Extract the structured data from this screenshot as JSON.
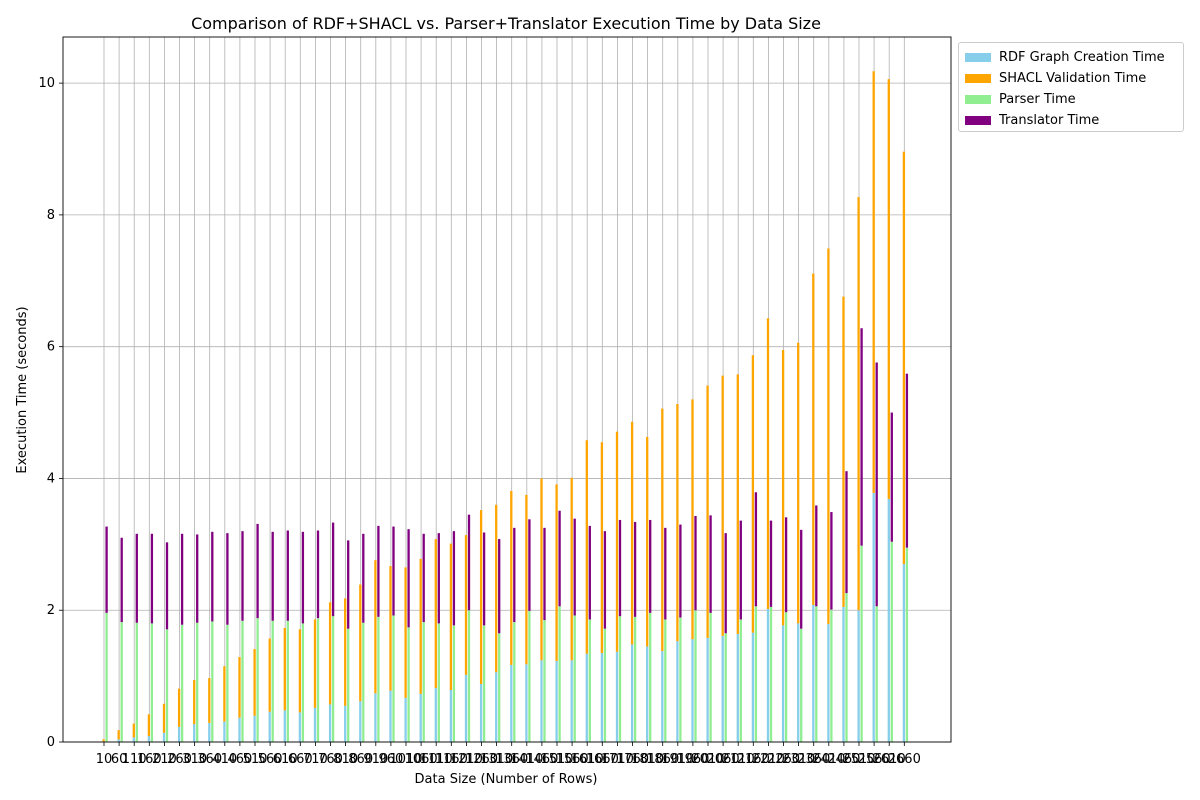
{
  "chart_data": {
    "type": "bar",
    "title": "Comparison of RDF+SHACL vs. Parser+Translator Execution Time by Data Size",
    "xlabel": "Data Size (Number of Rows)",
    "ylabel": "Execution Time (seconds)",
    "ylim": [
      0,
      10.7
    ],
    "yticks": [
      0,
      2,
      4,
      6,
      8,
      10
    ],
    "grid": true,
    "legend_position": "upper-right-outside",
    "x": [
      10,
      60,
      110,
      160,
      210,
      260,
      310,
      360,
      410,
      460,
      510,
      560,
      610,
      660,
      710,
      760,
      810,
      860,
      910,
      960,
      1010,
      1060,
      1110,
      1160,
      1210,
      1260,
      1310,
      1360,
      1410,
      1460,
      1510,
      1560,
      1610,
      1660,
      1710,
      1760,
      1810,
      1860,
      1910,
      1960,
      2010,
      2060,
      2110,
      2160,
      2210,
      2260,
      2310,
      2360,
      2410,
      2460,
      2510,
      2560,
      2610,
      2660
    ],
    "series": [
      {
        "name": "RDF Graph Creation Time",
        "color": "#87CEEB",
        "group": "rdf_shacl",
        "values": [
          0.01,
          0.04,
          0.07,
          0.09,
          0.14,
          0.23,
          0.27,
          0.29,
          0.31,
          0.37,
          0.4,
          0.46,
          0.48,
          0.45,
          0.52,
          0.57,
          0.55,
          0.62,
          0.74,
          0.78,
          0.67,
          0.73,
          0.82,
          0.79,
          1.02,
          0.88,
          1.06,
          1.17,
          1.18,
          1.24,
          1.23,
          1.24,
          1.34,
          1.35,
          1.37,
          1.48,
          1.45,
          1.38,
          1.53,
          1.56,
          1.58,
          1.61,
          1.64,
          1.66,
          2.02,
          1.77,
          1.8,
          2.08,
          1.79,
          2.05,
          2.0,
          3.78,
          3.69,
          2.7
        ]
      },
      {
        "name": "SHACL Validation Time",
        "color": "#FFA500",
        "group": "rdf_shacl",
        "values": [
          0.03,
          0.14,
          0.21,
          0.33,
          0.44,
          0.58,
          0.67,
          0.68,
          0.84,
          0.92,
          1.01,
          1.11,
          1.25,
          1.26,
          1.34,
          1.55,
          1.63,
          1.77,
          2.02,
          1.89,
          1.98,
          2.05,
          2.26,
          2.22,
          2.12,
          2.64,
          2.54,
          2.64,
          2.57,
          2.76,
          2.68,
          2.77,
          3.24,
          3.2,
          3.34,
          3.38,
          3.18,
          3.68,
          3.6,
          3.64,
          3.83,
          3.95,
          3.94,
          4.21,
          4.41,
          4.18,
          4.26,
          5.03,
          5.7,
          4.71,
          6.27,
          6.4,
          6.37,
          6.26
        ]
      },
      {
        "name": "Parser Time",
        "color": "#90EE90",
        "group": "parser_translator",
        "values": [
          1.96,
          1.82,
          1.81,
          1.8,
          1.71,
          1.78,
          1.81,
          1.83,
          1.78,
          1.84,
          1.88,
          1.84,
          1.84,
          1.8,
          1.88,
          1.91,
          1.72,
          1.81,
          1.9,
          1.92,
          1.74,
          1.82,
          1.8,
          1.77,
          2.0,
          1.77,
          1.65,
          1.82,
          1.99,
          1.85,
          2.06,
          1.92,
          1.86,
          1.72,
          1.91,
          1.9,
          1.96,
          1.86,
          1.89,
          2.0,
          1.96,
          1.65,
          1.86,
          2.06,
          2.05,
          1.97,
          1.72,
          2.06,
          2.01,
          2.26,
          2.98,
          2.06,
          3.04,
          2.95
        ]
      },
      {
        "name": "Translator Time",
        "color": "#800080",
        "group": "parser_translator",
        "values": [
          1.31,
          1.28,
          1.35,
          1.36,
          1.32,
          1.38,
          1.34,
          1.36,
          1.39,
          1.36,
          1.43,
          1.35,
          1.37,
          1.39,
          1.33,
          1.42,
          1.34,
          1.35,
          1.38,
          1.35,
          1.49,
          1.34,
          1.37,
          1.43,
          1.45,
          1.41,
          1.43,
          1.43,
          1.39,
          1.4,
          1.45,
          1.47,
          1.42,
          1.48,
          1.46,
          1.44,
          1.41,
          1.39,
          1.41,
          1.43,
          1.48,
          1.52,
          1.5,
          1.73,
          1.31,
          1.44,
          1.5,
          1.53,
          1.48,
          1.85,
          3.3,
          3.7,
          1.96,
          2.64
        ]
      }
    ]
  }
}
